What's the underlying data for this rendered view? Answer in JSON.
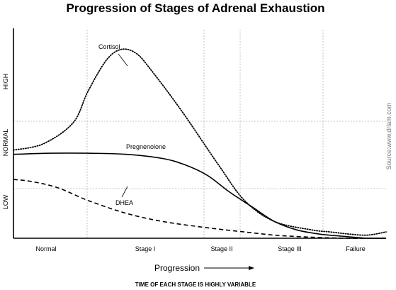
{
  "chart_data": {
    "type": "line",
    "title": "Progression of Stages of Adrenal Exhaustion",
    "xlabel": "Progression",
    "ylabel": "",
    "categories": [
      "Normal",
      "Stage I",
      "Stage II",
      "Stage III",
      "Failure"
    ],
    "y_levels": [
      "LOW",
      "NORMAL",
      "HIGH"
    ],
    "grid": true,
    "footnote": "TIME OF EACH STAGE IS HIGHLY VARIABLE",
    "source": "Source:www.drlam.com",
    "xlim": [
      0,
      100
    ],
    "ylim": [
      0,
      100
    ],
    "series": [
      {
        "name": "Cortisol",
        "style": "dotted",
        "x": [
          0,
          8,
          16,
          20,
          25,
          29,
          33,
          37,
          45,
          55,
          62,
          70,
          80,
          85,
          90,
          95,
          100
        ],
        "y": [
          42,
          45,
          55,
          70,
          85,
          90,
          88,
          80,
          61,
          35,
          18,
          8,
          4,
          3,
          2,
          1.5,
          3
        ]
      },
      {
        "name": "Pregnenolone",
        "style": "solid",
        "x": [
          0,
          10,
          20,
          30,
          40,
          46,
          52,
          58,
          64,
          70,
          76,
          82,
          88,
          95,
          100
        ],
        "y": [
          40,
          40.5,
          40.5,
          40,
          38,
          35,
          30,
          22,
          15,
          8,
          4,
          2,
          1,
          0,
          0
        ]
      },
      {
        "name": "DHEA",
        "style": "dashed",
        "x": [
          0,
          5,
          12,
          20,
          30,
          40,
          52,
          62,
          70,
          80,
          90,
          100
        ],
        "y": [
          28,
          27,
          24,
          18,
          12,
          8,
          5,
          3,
          1.5,
          0.5,
          0,
          0
        ]
      }
    ],
    "annotations": [
      {
        "text": "Cortisol",
        "series": "Cortisol"
      },
      {
        "text": "Pregnenolone",
        "series": "Pregnenolone"
      },
      {
        "text": "DHEA",
        "series": "DHEA"
      }
    ]
  }
}
